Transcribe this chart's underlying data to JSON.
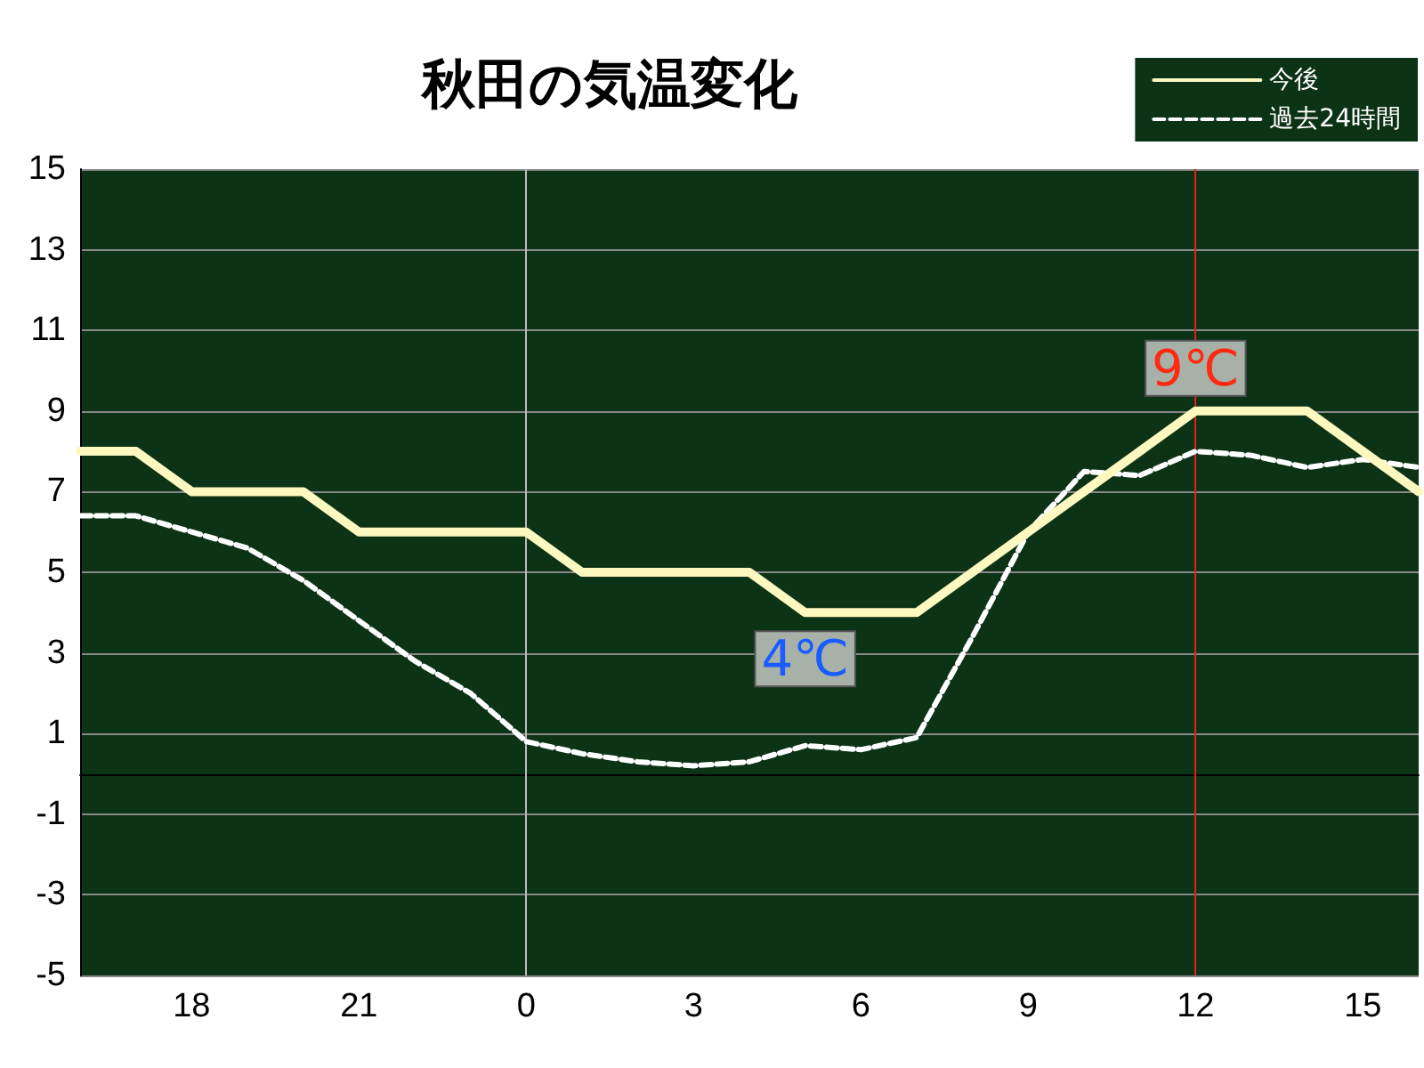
{
  "chart_data": {
    "type": "line",
    "title": "秋田の気温変化",
    "categories": [
      null,
      null,
      "18",
      null,
      null,
      "21",
      null,
      null,
      "0",
      null,
      null,
      "3",
      null,
      null,
      "6",
      null,
      null,
      "9",
      null,
      null,
      "12",
      null,
      null,
      "15",
      null
    ],
    "series": [
      {
        "name": "今後",
        "color": "#fdf8c0",
        "line_style": "solid",
        "values": [
          8,
          8,
          7,
          7,
          7,
          6,
          6,
          6,
          6,
          5,
          5,
          5,
          5,
          4,
          4,
          4,
          5,
          6,
          7,
          8,
          9,
          9,
          9,
          8,
          7
        ]
      },
      {
        "name": "過去24時間",
        "color": "#ffffff",
        "line_style": "dashed",
        "values": [
          6.4,
          6.4,
          6.0,
          5.6,
          4.8,
          3.8,
          2.8,
          2.0,
          0.8,
          0.5,
          0.3,
          0.2,
          0.3,
          0.7,
          0.6,
          0.9,
          3.4,
          6.0,
          7.5,
          7.4,
          8.0,
          7.9,
          7.6,
          7.8,
          7.6
        ]
      }
    ],
    "ylim": [
      -5,
      15
    ],
    "yticks": [
      -5,
      -3,
      -1,
      1,
      3,
      5,
      7,
      9,
      11,
      13,
      15
    ],
    "ref_lines": [
      {
        "axis": "x",
        "value": "0",
        "label": null,
        "color": "#bbbbbb"
      },
      {
        "axis": "x",
        "value": "12",
        "label": null,
        "color": "#e02020"
      }
    ],
    "annotations": [
      {
        "text": "9℃",
        "x": "12",
        "y": 9
      },
      {
        "text": "4℃",
        "y": 4
      }
    ],
    "grid": "y",
    "legend": "top right",
    "marker": "none"
  }
}
